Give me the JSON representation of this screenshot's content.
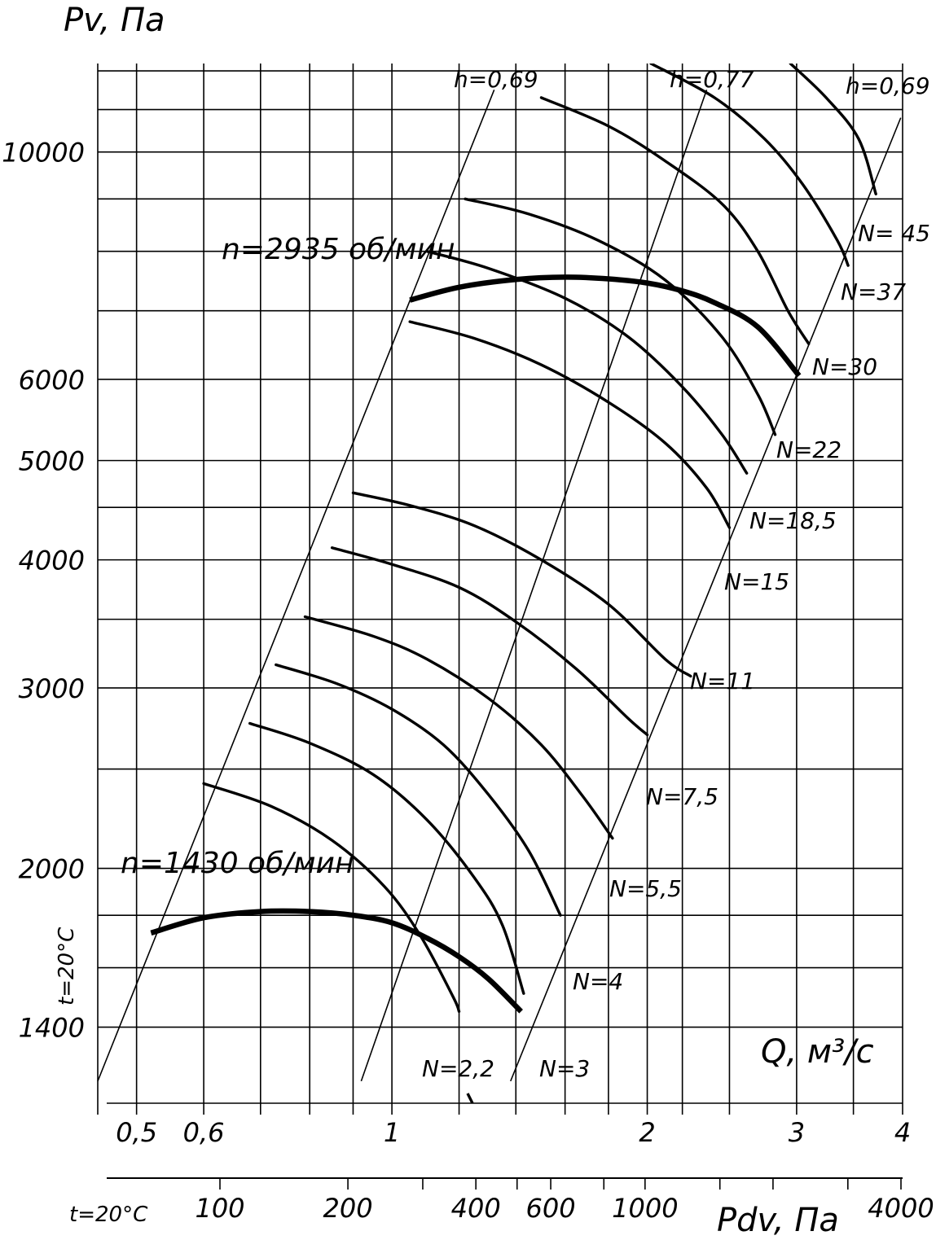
{
  "chart_data": {
    "type": "line",
    "title": "",
    "ylabel": "Pv, Па",
    "xlabel": "Q, м³/с",
    "x2label": "Pdv, Па",
    "temperature_label": "t=20°C",
    "x_scale": "log",
    "y_scale": "log",
    "xlim": [
      0.45,
      4.0
    ],
    "ylim": [
      1180,
      12200
    ],
    "x_ticks": [
      {
        "value": 0.5,
        "label": "0,5"
      },
      {
        "value": 0.6,
        "label": "0,6"
      },
      {
        "value": 1,
        "label": "1"
      },
      {
        "value": 2,
        "label": "2"
      },
      {
        "value": 3,
        "label": "3"
      },
      {
        "value": 4,
        "label": "4"
      }
    ],
    "y_ticks": [
      {
        "value": 1400,
        "label": "1400"
      },
      {
        "value": 2000,
        "label": "2000"
      },
      {
        "value": 3000,
        "label": "3000"
      },
      {
        "value": 4000,
        "label": "4000"
      },
      {
        "value": 5000,
        "label": "5000"
      },
      {
        "value": 6000,
        "label": "6000"
      },
      {
        "value": 10000,
        "label": "10000"
      }
    ],
    "pdv_ticks": [
      {
        "value": 100,
        "label": "100"
      },
      {
        "value": 200,
        "label": "200"
      },
      {
        "value": 400,
        "label": "400"
      },
      {
        "value": 600,
        "label": "600"
      },
      {
        "value": 1000,
        "label": "1000"
      },
      {
        "value": 4000,
        "label": "4000"
      }
    ],
    "speed_curves": [
      {
        "name": "n=1430 об/мин",
        "points": [
          [
            0.52,
            1730
          ],
          [
            0.6,
            1790
          ],
          [
            0.7,
            1815
          ],
          [
            0.8,
            1815
          ],
          [
            0.9,
            1800
          ],
          [
            1.0,
            1770
          ],
          [
            1.1,
            1710
          ],
          [
            1.2,
            1640
          ],
          [
            1.3,
            1560
          ],
          [
            1.42,
            1450
          ]
        ]
      },
      {
        "name": "n=2935 об/мин",
        "points": [
          [
            1.05,
            7170
          ],
          [
            1.2,
            7380
          ],
          [
            1.4,
            7510
          ],
          [
            1.6,
            7550
          ],
          [
            1.8,
            7520
          ],
          [
            2.0,
            7450
          ],
          [
            2.2,
            7320
          ],
          [
            2.4,
            7130
          ],
          [
            2.7,
            6750
          ],
          [
            3.02,
            6050
          ]
        ]
      }
    ],
    "power_curves": [
      {
        "name": "N=2,2",
        "points": [
          [
            0.6,
            2420
          ],
          [
            0.72,
            2300
          ],
          [
            0.85,
            2130
          ],
          [
            0.98,
            1920
          ],
          [
            1.08,
            1720
          ],
          [
            1.18,
            1500
          ],
          [
            1.2,
            1450
          ]
        ]
      },
      {
        "name": "N=3",
        "points": [
          [
            0.68,
            2770
          ],
          [
            0.8,
            2650
          ],
          [
            0.95,
            2470
          ],
          [
            1.1,
            2230
          ],
          [
            1.25,
            1960
          ],
          [
            1.35,
            1760
          ],
          [
            1.43,
            1510
          ]
        ]
      },
      {
        "name": "N=4",
        "points": [
          [
            0.73,
            3160
          ],
          [
            0.86,
            3030
          ],
          [
            1.0,
            2860
          ],
          [
            1.15,
            2640
          ],
          [
            1.3,
            2360
          ],
          [
            1.45,
            2080
          ],
          [
            1.58,
            1800
          ]
        ]
      },
      {
        "name": "N=5,5",
        "points": [
          [
            0.79,
            3520
          ],
          [
            0.95,
            3370
          ],
          [
            1.1,
            3200
          ],
          [
            1.3,
            2930
          ],
          [
            1.5,
            2640
          ],
          [
            1.68,
            2350
          ],
          [
            1.82,
            2140
          ]
        ]
      },
      {
        "name": "N=7,5",
        "points": [
          [
            0.85,
            4110
          ],
          [
            1.0,
            3960
          ],
          [
            1.2,
            3760
          ],
          [
            1.4,
            3480
          ],
          [
            1.65,
            3130
          ],
          [
            1.9,
            2800
          ],
          [
            2.0,
            2700
          ]
        ]
      },
      {
        "name": "N=11",
        "points": [
          [
            0.9,
            4650
          ],
          [
            1.05,
            4520
          ],
          [
            1.25,
            4320
          ],
          [
            1.5,
            4000
          ],
          [
            1.8,
            3620
          ],
          [
            2.1,
            3200
          ],
          [
            2.25,
            3080
          ]
        ]
      },
      {
        "name": "N=15",
        "points": [
          [
            1.05,
            6830
          ],
          [
            1.25,
            6580
          ],
          [
            1.5,
            6200
          ],
          [
            1.8,
            5700
          ],
          [
            2.1,
            5200
          ],
          [
            2.35,
            4700
          ],
          [
            2.5,
            4300
          ]
        ]
      },
      {
        "name": "N=18,5",
        "points": [
          [
            1.1,
            8000
          ],
          [
            1.3,
            7700
          ],
          [
            1.6,
            7200
          ],
          [
            1.9,
            6600
          ],
          [
            2.2,
            5900
          ],
          [
            2.45,
            5300
          ],
          [
            2.62,
            4860
          ]
        ]
      },
      {
        "name": "N=22",
        "points": [
          [
            1.22,
            9000
          ],
          [
            1.45,
            8700
          ],
          [
            1.75,
            8200
          ],
          [
            2.1,
            7500
          ],
          [
            2.45,
            6600
          ],
          [
            2.7,
            5800
          ],
          [
            2.83,
            5300
          ]
        ]
      },
      {
        "name": "N=30",
        "points": [
          [
            1.5,
            11300
          ],
          [
            1.8,
            10600
          ],
          [
            2.1,
            9800
          ],
          [
            2.45,
            8900
          ],
          [
            2.7,
            8000
          ],
          [
            2.93,
            7000
          ],
          [
            3.1,
            6500
          ]
        ]
      },
      {
        "name": "N=37",
        "points": [
          [
            2.02,
            12200
          ],
          [
            2.4,
            11300
          ],
          [
            2.75,
            10300
          ],
          [
            3.05,
            9300
          ],
          [
            3.35,
            8200
          ],
          [
            3.45,
            7750
          ]
        ]
      },
      {
        "name": "N= 45",
        "points": [
          [
            2.95,
            12200
          ],
          [
            3.25,
            11300
          ],
          [
            3.55,
            10300
          ],
          [
            3.72,
            9100
          ]
        ]
      }
    ],
    "efficiency_lines": [
      {
        "name": "h=0,69",
        "points": [
          [
            0.45,
            1240
          ],
          [
            1.32,
            11500
          ]
        ]
      },
      {
        "name": "h=0,77",
        "points": [
          [
            0.92,
            1240
          ],
          [
            2.35,
            11500
          ]
        ]
      },
      {
        "name": "h=0,69",
        "points": [
          [
            1.38,
            1240
          ],
          [
            3.98,
            10800
          ]
        ]
      }
    ],
    "annotations": {
      "n1430": "n=1430 об/мин",
      "n2935": "n=2935 об/мин",
      "h1": "h=0,69",
      "h2": "h=0,77",
      "h3": "h=0,69",
      "N22_": "N=2,2",
      "N3": "N=3",
      "N4": "N=4",
      "N55": "N=5,5",
      "N75": "N=7,5",
      "N11": "N=11",
      "N15": "N=15",
      "N185": "N=18,5",
      "N22": "N=22",
      "N30": "N=30",
      "N37": "N=37",
      "N45": "N= 45"
    },
    "grid": true
  }
}
